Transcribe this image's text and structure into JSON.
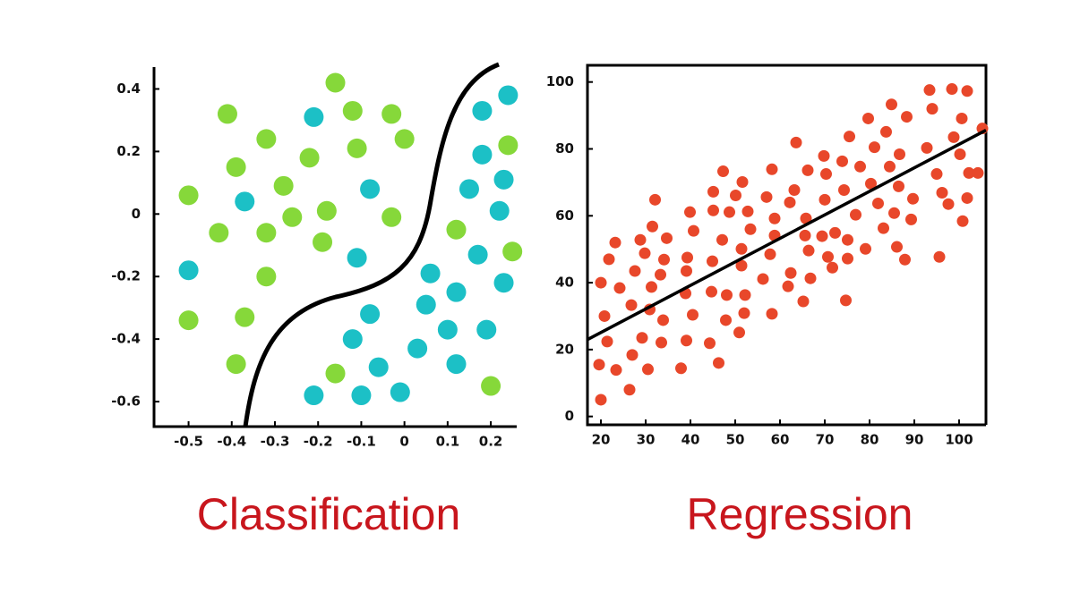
{
  "chart_data": [
    {
      "type": "scatter",
      "title": "Classification",
      "box": false,
      "xlim": [
        -0.58,
        0.26
      ],
      "ylim": [
        -0.68,
        0.47
      ],
      "xticks": [
        -0.5,
        -0.4,
        -0.3,
        -0.2,
        -0.1,
        0,
        0.1,
        0.2
      ],
      "yticks": [
        0.4,
        0.2,
        0,
        -0.2,
        -0.4,
        -0.6
      ],
      "series": [
        {
          "color": "#86d83a",
          "x": [
            -0.16,
            -0.41,
            -0.12,
            -0.03,
            -0.32,
            0,
            -0.11,
            -0.22,
            -0.39,
            -0.28,
            -0.5,
            -0.18,
            -0.26,
            -0.03,
            -0.43,
            -0.32,
            0.12,
            -0.19,
            0.24,
            0.25,
            -0.32,
            -0.5,
            -0.37,
            -0.39,
            -0.16,
            0.2
          ],
          "y": [
            0.42,
            0.32,
            0.33,
            0.32,
            0.24,
            0.24,
            0.21,
            0.18,
            0.15,
            0.09,
            0.06,
            0.01,
            -0.01,
            -0.01,
            -0.06,
            -0.06,
            -0.05,
            -0.09,
            0.22,
            -0.12,
            -0.2,
            -0.34,
            -0.33,
            -0.48,
            -0.51,
            -0.55
          ]
        },
        {
          "color": "#1cc0c6",
          "x": [
            0.24,
            0.18,
            -0.21,
            0.18,
            -0.08,
            0.15,
            0.23,
            -0.37,
            0.22,
            -0.11,
            0.17,
            -0.5,
            0.06,
            0.23,
            0.12,
            0.05,
            -0.08,
            0.1,
            0.19,
            -0.12,
            0.03,
            -0.06,
            0.12,
            -0.21,
            -0.1,
            -0.01
          ],
          "y": [
            0.38,
            0.33,
            0.31,
            0.19,
            0.08,
            0.08,
            0.11,
            0.04,
            0.01,
            -0.14,
            -0.13,
            -0.18,
            -0.19,
            -0.22,
            -0.25,
            -0.29,
            -0.32,
            -0.37,
            -0.37,
            -0.4,
            -0.43,
            -0.49,
            -0.48,
            -0.58,
            -0.58,
            -0.57
          ]
        }
      ]
    },
    {
      "type": "scatter",
      "title": "Regression",
      "box": true,
      "xlim": [
        17,
        106
      ],
      "ylim": [
        -2.5,
        105
      ],
      "xticks": [
        20,
        30,
        40,
        50,
        60,
        70,
        80,
        90,
        100
      ],
      "yticks": [
        0,
        20,
        40,
        60,
        80,
        100
      ],
      "line": {
        "color": "#000000",
        "x": [
          17,
          106
        ],
        "y": [
          23,
          85.6
        ]
      },
      "series": [
        {
          "color": "#e8472a",
          "x": [
            20,
            19.6,
            23.4,
            20,
            20.8,
            21.4,
            21.8,
            23.2,
            24.2,
            26.4,
            27,
            26.8,
            27.6,
            28.8,
            29.2,
            29.8,
            30.5,
            30.9,
            31.3,
            31.5,
            32.1,
            33.5,
            33.9,
            33.3,
            34.1,
            34.7,
            37.9,
            39.1,
            38.9,
            39.3,
            39.1,
            39.9,
            40.5,
            40.7,
            44.3,
            44.7,
            44.9,
            45.1,
            45.1,
            46.3,
            47.1,
            47.3,
            47.9,
            48.1,
            48.7,
            50.1,
            50.9,
            51.4,
            51.4,
            52,
            51.6,
            52.2,
            52.8,
            53.4,
            56.2,
            57,
            58.2,
            57.8,
            58.8,
            58.2,
            58.8,
            61.8,
            62.2,
            62.4,
            63.2,
            63.6,
            65.2,
            65.6,
            65.8,
            66.2,
            66.4,
            66.8,
            69.4,
            69.8,
            70,
            70.3,
            70.7,
            71.7,
            72.3,
            73.9,
            74.3,
            74.7,
            75.1,
            75.1,
            75.5,
            76.9,
            77.9,
            79.1,
            79.7,
            80.3,
            81.1,
            81.9,
            83.1,
            83.7,
            84.5,
            84.9,
            85.5,
            86.1,
            86.5,
            86.7,
            87.9,
            88.3,
            89.3,
            89.7,
            92.8,
            93.4,
            94,
            95,
            95.6,
            96.2,
            97.6,
            98.4,
            98.8,
            100.2,
            100.6,
            100.8,
            101.8,
            102.2,
            101.8,
            104.2,
            105.2
          ],
          "y": [
            5,
            15.5,
            13.9,
            40,
            30,
            22.4,
            47,
            52,
            38.4,
            8,
            18.4,
            33.3,
            43.5,
            52.8,
            23.5,
            48.8,
            14.1,
            32,
            38.7,
            56.8,
            64.8,
            22.1,
            28.8,
            42.4,
            46.9,
            53.3,
            14.4,
            22.7,
            36.8,
            47.5,
            43.5,
            61.1,
            30.4,
            55.5,
            21.9,
            37.3,
            46.4,
            61.6,
            67.2,
            16,
            52.8,
            73.3,
            28.8,
            36.3,
            61.1,
            66.1,
            25.1,
            45.1,
            50.1,
            30.9,
            70.1,
            36.3,
            61.3,
            56,
            41.1,
            65.6,
            30.7,
            48.5,
            59.2,
            73.9,
            54.1,
            38.9,
            64,
            42.9,
            67.7,
            81.9,
            34.4,
            54.1,
            59.2,
            73.6,
            49.6,
            41.3,
            53.9,
            77.9,
            64.8,
            72.5,
            47.7,
            44.5,
            54.9,
            76.3,
            67.7,
            34.7,
            52.8,
            47.2,
            83.7,
            60.3,
            74.7,
            50.1,
            89.1,
            69.6,
            80.5,
            63.7,
            56.3,
            85.1,
            74.7,
            93.3,
            60.8,
            50.7,
            68.8,
            78.4,
            46.9,
            89.6,
            58.9,
            65.1,
            80.3,
            97.6,
            92,
            72.5,
            47.7,
            66.9,
            63.5,
            97.9,
            83.5,
            78.4,
            89.1,
            58.4,
            97.3,
            72.8,
            65.3,
            72.8,
            86.1
          ]
        }
      ]
    }
  ]
}
